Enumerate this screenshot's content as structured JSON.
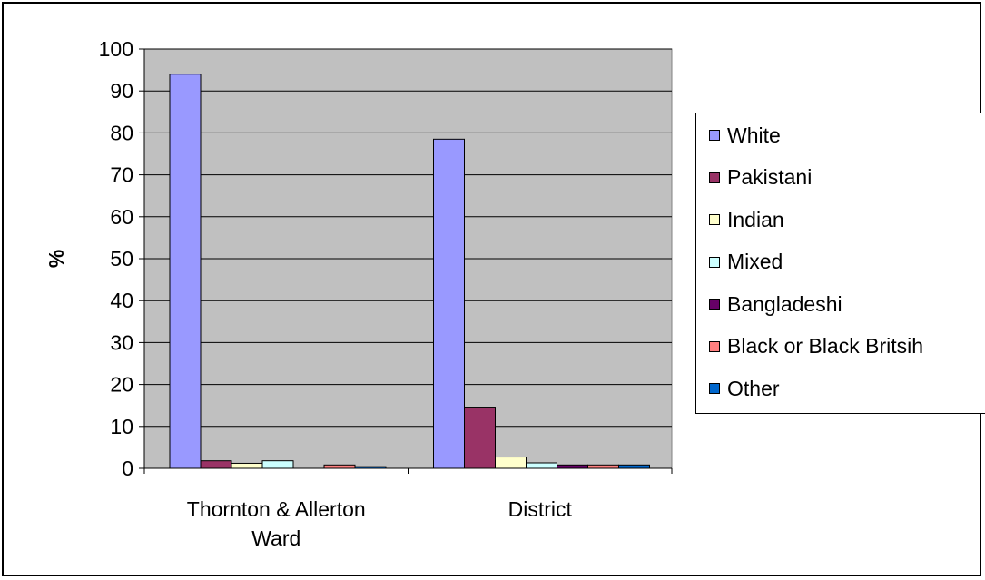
{
  "chart_data": {
    "type": "bar",
    "title": "",
    "xlabel": "",
    "ylabel": "%",
    "ylim": [
      0,
      100
    ],
    "yticks": [
      0,
      10,
      20,
      30,
      40,
      50,
      60,
      70,
      80,
      90,
      100
    ],
    "grid": true,
    "legend_position": "right",
    "categories": [
      "Thornton & Allerton Ward",
      "District"
    ],
    "category_lines": [
      [
        "Thornton & Allerton",
        "Ward"
      ],
      [
        "District"
      ]
    ],
    "series": [
      {
        "name": "White",
        "color": "#9999FF",
        "values": [
          94.0,
          78.5
        ]
      },
      {
        "name": "Pakistani",
        "color": "#993366",
        "values": [
          1.8,
          14.6
        ]
      },
      {
        "name": "Indian",
        "color": "#FFFFCC",
        "values": [
          1.2,
          2.7
        ]
      },
      {
        "name": "Mixed",
        "color": "#CCFFFF",
        "values": [
          1.8,
          1.3
        ]
      },
      {
        "name": "Bangladeshi",
        "color": "#660066",
        "values": [
          0.0,
          0.8
        ]
      },
      {
        "name": "Black or Black Britsih",
        "color": "#FF8080",
        "values": [
          0.8,
          0.8
        ]
      },
      {
        "name": "Other",
        "color": "#0066CC",
        "values": [
          0.4,
          0.8
        ]
      }
    ]
  }
}
